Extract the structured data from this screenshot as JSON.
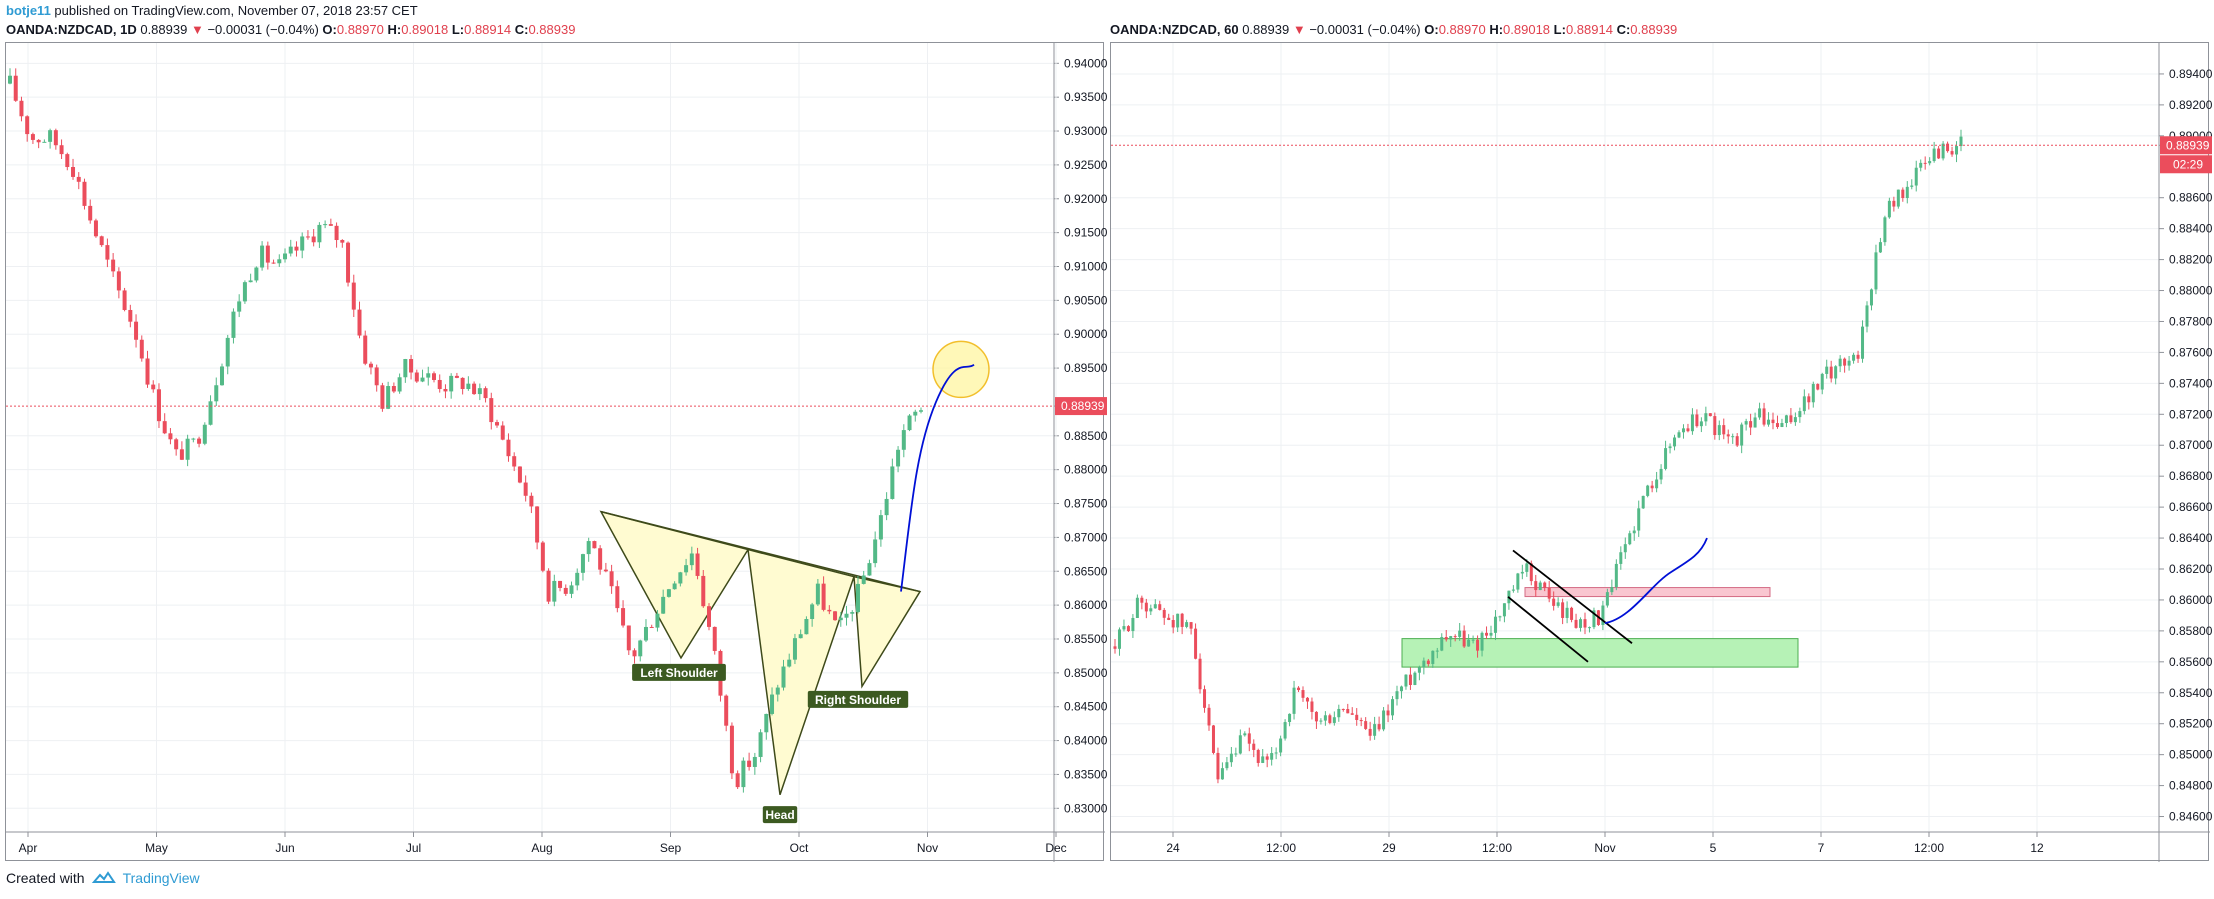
{
  "header": {
    "user": "botje11",
    "published_text": " published on TradingView.com, November 07, 2018 23:57 CET"
  },
  "colors": {
    "up": "#53b987",
    "down": "#eb4d5c",
    "price_line": "#eb4d5c",
    "grid": "#eef0f3",
    "pattern_fill": "#fffbd1",
    "pattern_stroke": "#3e4a1a",
    "projection": "#0010d6",
    "circle_fill": "#fff59a",
    "circle_stroke": "#f2bf2c",
    "demand_zone_fill": "#b6f2b6",
    "supply_zone_fill": "#f9c6d0",
    "brand": "#2f9bd3"
  },
  "left_legend": {
    "symbol": "OANDA:NZDCAD, 1D",
    "last": "0.88939",
    "arrow": "▼",
    "change": "−0.00031 (−0.04%)",
    "o_label": "O:",
    "o": "0.88970",
    "h_label": "H:",
    "h": "0.89018",
    "l_label": "L:",
    "l": "0.88914",
    "c_label": "C:",
    "c": "0.88939"
  },
  "right_legend": {
    "symbol": "OANDA:NZDCAD, 60",
    "last": "0.88939",
    "arrow": "▼",
    "change": "−0.00031 (−0.04%)",
    "o_label": "O:",
    "o": "0.88970",
    "h_label": "H:",
    "h": "0.89018",
    "l_label": "L:",
    "l": "0.88914",
    "c_label": "C:",
    "c": "0.88939"
  },
  "footer": {
    "created_with": "Created with",
    "brand": "TradingView"
  },
  "chart_data": [
    {
      "type": "candlestick",
      "symbol": "OANDA:NZDCAD",
      "interval": "1D",
      "ylim": [
        0.8265,
        0.943
      ],
      "y_ticks": [
        "0.94000",
        "0.93500",
        "0.93000",
        "0.92500",
        "0.92000",
        "0.91500",
        "0.91000",
        "0.90500",
        "0.90000",
        "0.89500",
        "0.88939",
        "0.88500",
        "0.88000",
        "0.87500",
        "0.87000",
        "0.86500",
        "0.86000",
        "0.85500",
        "0.85000",
        "0.84500",
        "0.84000",
        "0.83500",
        "0.83000"
      ],
      "x_ticks": [
        "Apr",
        "May",
        "Jun",
        "Jul",
        "Aug",
        "Sep",
        "Oct",
        "Nov",
        "Dec"
      ],
      "last_price": "0.88939",
      "annotations": [
        "Left Shoulder",
        "Head",
        "Right Shoulder"
      ],
      "pattern": "inverse head and shoulders",
      "path_points": [
        [
          "Apr",
          0.937
        ],
        [
          "Apr",
          0.929
        ],
        [
          "Apr",
          0.929
        ],
        [
          "May",
          0.925
        ],
        [
          "May",
          0.916
        ],
        [
          "May",
          0.908
        ],
        [
          "May",
          0.901
        ],
        [
          "May",
          0.89
        ],
        [
          "May",
          0.882
        ],
        [
          "May",
          0.884
        ],
        [
          "Jun",
          0.894
        ],
        [
          "Jun",
          0.905
        ],
        [
          "Jun",
          0.912
        ],
        [
          "Jun",
          0.91
        ],
        [
          "Jun",
          0.913
        ],
        [
          "Jun",
          0.916
        ],
        [
          "Jul",
          0.914
        ],
        [
          "Jul",
          0.898
        ],
        [
          "Jul",
          0.89
        ],
        [
          "Jul",
          0.895
        ],
        [
          "Jul",
          0.894
        ],
        [
          "Jul",
          0.8925
        ],
        [
          "Aug",
          0.893
        ],
        [
          "Aug",
          0.89
        ],
        [
          "Aug",
          0.883
        ],
        [
          "Aug",
          0.876
        ],
        [
          "Aug",
          0.862
        ],
        [
          "Aug",
          0.863
        ],
        [
          "Aug",
          0.87
        ],
        [
          "Sep",
          0.862
        ],
        [
          "Sep",
          0.852
        ],
        [
          "Sep",
          0.858
        ],
        [
          "Sep",
          0.864
        ],
        [
          "Sep",
          0.868
        ],
        [
          "Oct",
          0.853
        ],
        [
          "Oct",
          0.834
        ],
        [
          "Oct",
          0.838
        ],
        [
          "Oct",
          0.848
        ],
        [
          "Oct",
          0.855
        ],
        [
          "Oct",
          0.862
        ],
        [
          "Oct",
          0.856
        ],
        [
          "Nov",
          0.862
        ],
        [
          "Nov",
          0.872
        ],
        [
          "Nov",
          0.885
        ],
        [
          "Nov",
          0.8894
        ]
      ]
    },
    {
      "type": "candlestick",
      "symbol": "OANDA:NZDCAD",
      "interval": "60",
      "ylim": [
        0.845,
        0.896
      ],
      "y_ticks": [
        "0.89400",
        "0.89200",
        "0.89000",
        "0.88939",
        "0.88600",
        "0.88400",
        "0.88200",
        "0.88000",
        "0.87800",
        "0.87600",
        "0.87400",
        "0.87200",
        "0.87000",
        "0.86800",
        "0.86600",
        "0.86400",
        "0.86200",
        "0.86000",
        "0.85800",
        "0.85600",
        "0.85400",
        "0.85200",
        "0.85000",
        "0.84800",
        "0.84600"
      ],
      "x_ticks": [
        "24",
        "12:00",
        "29",
        "12:00",
        "Nov",
        "5",
        "7",
        "12:00",
        "12"
      ],
      "last_price": "0.88939",
      "countdown": "02:29",
      "path_points": [
        [
          "24",
          0.857
        ],
        [
          "24",
          0.86
        ],
        [
          "24",
          0.859
        ],
        [
          "24",
          0.858
        ],
        [
          "12:00",
          0.848
        ],
        [
          "12:00",
          0.851
        ],
        [
          "12:00",
          0.849
        ],
        [
          "12:00",
          0.854
        ],
        [
          "12:00",
          0.852
        ],
        [
          "12:00",
          0.853
        ],
        [
          "29",
          0.851
        ],
        [
          "29",
          0.854
        ],
        [
          "29",
          0.856
        ],
        [
          "29",
          0.858
        ],
        [
          "29",
          0.857
        ],
        [
          "12:00",
          0.859
        ],
        [
          "12:00",
          0.862
        ],
        [
          "12:00",
          0.86
        ],
        [
          "12:00",
          0.8585
        ],
        [
          "Nov",
          0.859
        ],
        [
          "Nov",
          0.864
        ],
        [
          "Nov",
          0.868
        ],
        [
          "Nov",
          0.871
        ],
        [
          "5",
          0.872
        ],
        [
          "5",
          0.87
        ],
        [
          "5",
          0.872
        ],
        [
          "5",
          0.871
        ],
        [
          "5",
          0.873
        ],
        [
          "7",
          0.875
        ],
        [
          "7",
          0.876
        ],
        [
          "7",
          0.885
        ],
        [
          "7",
          0.887
        ],
        [
          "12:00",
          0.889
        ],
        [
          "12:00",
          0.8894
        ]
      ]
    }
  ]
}
